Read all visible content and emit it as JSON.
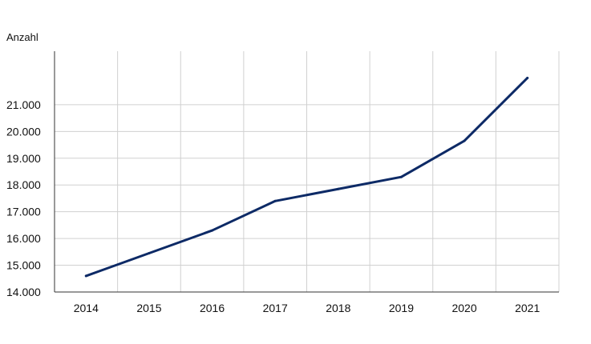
{
  "chart_data": {
    "type": "line",
    "title": "",
    "xlabel": "",
    "ylabel": "Anzahl",
    "categories": [
      "2014",
      "2015",
      "2016",
      "2017",
      "2018",
      "2019",
      "2020",
      "2021"
    ],
    "series": [
      {
        "values": [
          14600,
          15450,
          16300,
          17400,
          17850,
          18300,
          19650,
          22000
        ]
      }
    ],
    "y_ticks": [
      "14.000",
      "15.000",
      "16.000",
      "17.000",
      "18.000",
      "19.000",
      "20.000",
      "21.000"
    ],
    "ylim": [
      14000,
      23000
    ],
    "grid": true,
    "colors": {
      "line": "#0d2a66",
      "grid": "#d0d0d0",
      "axis": "#333333",
      "text": "#111111"
    }
  }
}
